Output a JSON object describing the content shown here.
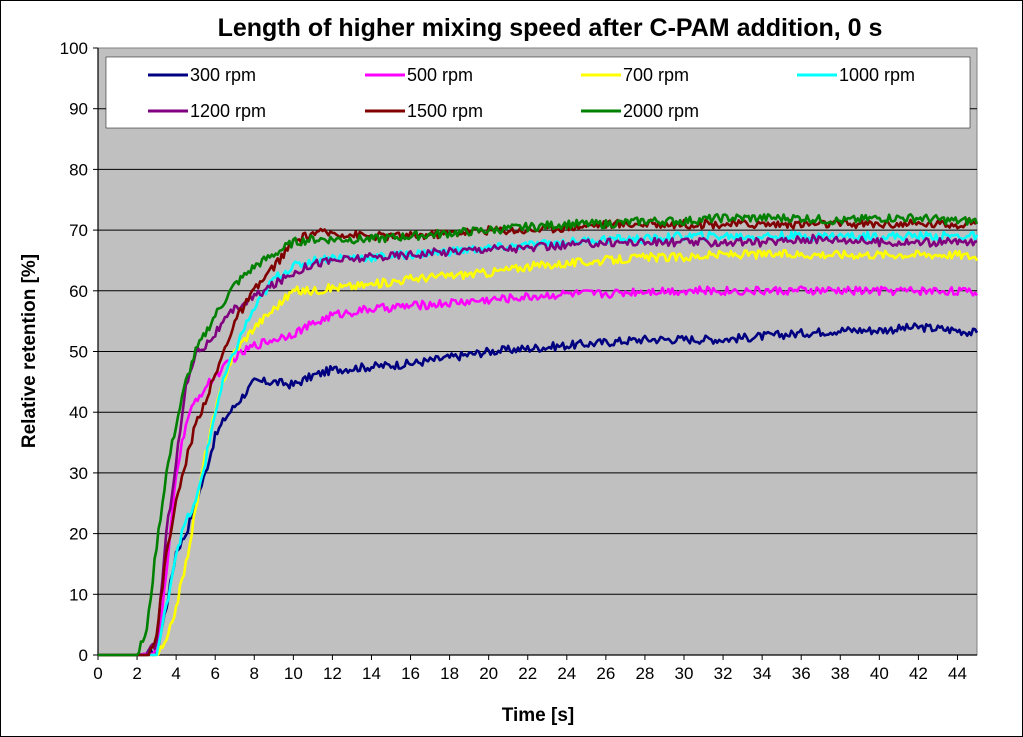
{
  "chart_data": {
    "type": "line",
    "title": "Length of higher mixing speed after C-PAM addition, 0 s",
    "xlabel": "Time [s]",
    "ylabel": "Relative retention [%]",
    "xlim": [
      0,
      45
    ],
    "ylim": [
      0,
      100
    ],
    "xticks": [
      0,
      2,
      4,
      6,
      8,
      10,
      12,
      14,
      16,
      18,
      20,
      22,
      24,
      26,
      28,
      30,
      32,
      34,
      36,
      38,
      40,
      42,
      44
    ],
    "yticks": [
      0,
      10,
      20,
      30,
      40,
      50,
      60,
      70,
      80,
      90,
      100
    ],
    "grid": "horizontal",
    "plot_background": "#c0c0c0",
    "legend_position": "top",
    "series": [
      {
        "name": "300 rpm",
        "color": "#000080",
        "points": [
          [
            0,
            0
          ],
          [
            2,
            0
          ],
          [
            3,
            0.5
          ],
          [
            3.5,
            8
          ],
          [
            4,
            17
          ],
          [
            4.5,
            20
          ],
          [
            5,
            25
          ],
          [
            5.5,
            30
          ],
          [
            6,
            36
          ],
          [
            6.5,
            39
          ],
          [
            7,
            41
          ],
          [
            7.5,
            43
          ],
          [
            8,
            45
          ],
          [
            9,
            45
          ],
          [
            10,
            44.5
          ],
          [
            11,
            46
          ],
          [
            12,
            47
          ],
          [
            14,
            47.5
          ],
          [
            16,
            48
          ],
          [
            18,
            49
          ],
          [
            20,
            50
          ],
          [
            22,
            50.5
          ],
          [
            24,
            51
          ],
          [
            26,
            51.5
          ],
          [
            28,
            52
          ],
          [
            30,
            52
          ],
          [
            32,
            52
          ],
          [
            34,
            52.5
          ],
          [
            36,
            53
          ],
          [
            38,
            53.5
          ],
          [
            40,
            53.5
          ],
          [
            42,
            54
          ],
          [
            44,
            53.5
          ],
          [
            45,
            53
          ]
        ]
      },
      {
        "name": "500 rpm",
        "color": "#ff00ff",
        "points": [
          [
            0,
            0
          ],
          [
            2,
            0
          ],
          [
            3,
            0.5
          ],
          [
            3.5,
            13
          ],
          [
            4,
            30
          ],
          [
            4.5,
            38
          ],
          [
            5,
            42
          ],
          [
            5.5,
            44
          ],
          [
            6,
            46
          ],
          [
            7,
            49
          ],
          [
            8,
            51
          ],
          [
            9,
            52
          ],
          [
            10,
            53
          ],
          [
            12,
            56
          ],
          [
            14,
            57
          ],
          [
            16,
            57.5
          ],
          [
            18,
            58
          ],
          [
            20,
            58.5
          ],
          [
            22,
            59
          ],
          [
            24,
            59.5
          ],
          [
            26,
            59.5
          ],
          [
            28,
            60
          ],
          [
            30,
            60
          ],
          [
            32,
            60
          ],
          [
            34,
            60
          ],
          [
            36,
            60
          ],
          [
            38,
            60
          ],
          [
            40,
            60
          ],
          [
            42,
            60
          ],
          [
            44,
            60
          ],
          [
            45,
            59.5
          ]
        ]
      },
      {
        "name": "700 rpm",
        "color": "#ffff00",
        "points": [
          [
            0,
            0
          ],
          [
            3,
            0
          ],
          [
            3.5,
            2
          ],
          [
            4,
            8
          ],
          [
            4.5,
            15
          ],
          [
            5,
            24
          ],
          [
            5.5,
            33
          ],
          [
            6,
            40
          ],
          [
            6.5,
            46
          ],
          [
            7,
            50
          ],
          [
            8,
            54
          ],
          [
            9,
            57
          ],
          [
            10,
            60
          ],
          [
            11,
            60
          ],
          [
            12,
            60.5
          ],
          [
            14,
            61
          ],
          [
            16,
            62
          ],
          [
            18,
            62.5
          ],
          [
            20,
            63
          ],
          [
            22,
            64
          ],
          [
            24,
            64.5
          ],
          [
            26,
            65
          ],
          [
            28,
            65.5
          ],
          [
            30,
            65.5
          ],
          [
            32,
            66
          ],
          [
            34,
            66
          ],
          [
            36,
            66
          ],
          [
            38,
            66
          ],
          [
            40,
            66
          ],
          [
            42,
            66
          ],
          [
            44,
            66
          ],
          [
            45,
            65.5
          ]
        ]
      },
      {
        "name": "1000 rpm",
        "color": "#00ffff",
        "points": [
          [
            0,
            0
          ],
          [
            3,
            0
          ],
          [
            3.5,
            8
          ],
          [
            4,
            17
          ],
          [
            4.5,
            22
          ],
          [
            5,
            25
          ],
          [
            5.5,
            32
          ],
          [
            6,
            40
          ],
          [
            6.5,
            46
          ],
          [
            7,
            50
          ],
          [
            7.5,
            54
          ],
          [
            8,
            57
          ],
          [
            9,
            62
          ],
          [
            10,
            64
          ],
          [
            11,
            65
          ],
          [
            12,
            65.5
          ],
          [
            14,
            65.5
          ],
          [
            16,
            66
          ],
          [
            18,
            66.5
          ],
          [
            20,
            67
          ],
          [
            22,
            67.5
          ],
          [
            24,
            68
          ],
          [
            26,
            68.5
          ],
          [
            28,
            68.5
          ],
          [
            30,
            69
          ],
          [
            32,
            69
          ],
          [
            34,
            69
          ],
          [
            36,
            69
          ],
          [
            38,
            69
          ],
          [
            40,
            69
          ],
          [
            42,
            69
          ],
          [
            44,
            69
          ],
          [
            45,
            69
          ]
        ]
      },
      {
        "name": "1200 rpm",
        "color": "#800080",
        "points": [
          [
            0,
            0
          ],
          [
            2.5,
            0
          ],
          [
            3,
            2
          ],
          [
            3.5,
            20
          ],
          [
            4,
            32
          ],
          [
            4.5,
            44
          ],
          [
            5,
            50
          ],
          [
            5.5,
            51
          ],
          [
            6,
            53
          ],
          [
            7,
            57
          ],
          [
            8,
            59
          ],
          [
            9,
            61
          ],
          [
            10,
            63
          ],
          [
            11,
            64.5
          ],
          [
            12,
            65
          ],
          [
            14,
            65.5
          ],
          [
            16,
            66
          ],
          [
            18,
            66.5
          ],
          [
            20,
            67
          ],
          [
            22,
            67
          ],
          [
            24,
            67.5
          ],
          [
            26,
            68
          ],
          [
            28,
            68
          ],
          [
            30,
            68
          ],
          [
            32,
            68
          ],
          [
            34,
            68
          ],
          [
            36,
            68.5
          ],
          [
            38,
            68.5
          ],
          [
            40,
            68
          ],
          [
            42,
            68
          ],
          [
            44,
            68
          ],
          [
            45,
            68
          ]
        ]
      },
      {
        "name": "1500 rpm",
        "color": "#800000",
        "points": [
          [
            0,
            0
          ],
          [
            2.5,
            0
          ],
          [
            3,
            3
          ],
          [
            3.5,
            17
          ],
          [
            4,
            25
          ],
          [
            4.5,
            32
          ],
          [
            5,
            38
          ],
          [
            5.5,
            42
          ],
          [
            6,
            46
          ],
          [
            7,
            55
          ],
          [
            8,
            60
          ],
          [
            9,
            64
          ],
          [
            10,
            68
          ],
          [
            11,
            69.5
          ],
          [
            12,
            69.5
          ],
          [
            14,
            69
          ],
          [
            16,
            69
          ],
          [
            18,
            69.5
          ],
          [
            20,
            70
          ],
          [
            22,
            70
          ],
          [
            24,
            70.5
          ],
          [
            26,
            71
          ],
          [
            28,
            71
          ],
          [
            30,
            71
          ],
          [
            32,
            71
          ],
          [
            34,
            71
          ],
          [
            36,
            71
          ],
          [
            38,
            71
          ],
          [
            40,
            71
          ],
          [
            42,
            71
          ],
          [
            44,
            71
          ],
          [
            45,
            71.5
          ]
        ]
      },
      {
        "name": "2000 rpm",
        "color": "#008000",
        "points": [
          [
            0,
            0
          ],
          [
            2,
            0
          ],
          [
            2.5,
            4
          ],
          [
            3,
            18
          ],
          [
            3.5,
            30
          ],
          [
            4,
            38
          ],
          [
            4.5,
            45
          ],
          [
            5,
            50
          ],
          [
            5.5,
            53
          ],
          [
            6,
            56
          ],
          [
            7,
            61
          ],
          [
            8,
            64
          ],
          [
            9,
            66
          ],
          [
            10,
            68
          ],
          [
            11,
            68.5
          ],
          [
            12,
            68.5
          ],
          [
            14,
            68.5
          ],
          [
            16,
            69
          ],
          [
            18,
            69.5
          ],
          [
            20,
            70
          ],
          [
            22,
            70.5
          ],
          [
            24,
            71
          ],
          [
            26,
            71
          ],
          [
            28,
            71.5
          ],
          [
            30,
            71.5
          ],
          [
            32,
            72
          ],
          [
            34,
            72
          ],
          [
            36,
            72
          ],
          [
            38,
            71.5
          ],
          [
            40,
            72
          ],
          [
            42,
            72
          ],
          [
            44,
            71.5
          ],
          [
            45,
            71.5
          ]
        ]
      }
    ]
  }
}
